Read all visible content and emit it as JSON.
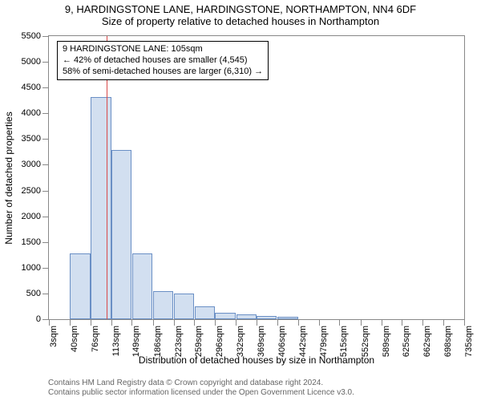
{
  "title": "9, HARDINGSTONE LANE, HARDINGSTONE, NORTHAMPTON, NN4 6DF",
  "subtitle": "Size of property relative to detached houses in Northampton",
  "y_axis_label": "Number of detached properties",
  "x_axis_label": "Distribution of detached houses by size in Northampton",
  "chart": {
    "type": "bar",
    "ylim": [
      0,
      5500
    ],
    "ytick_step": 500,
    "x_tick_labels": [
      "3sqm",
      "40sqm",
      "76sqm",
      "113sqm",
      "149sqm",
      "186sqm",
      "223sqm",
      "259sqm",
      "296sqm",
      "332sqm",
      "369sqm",
      "406sqm",
      "442sqm",
      "479sqm",
      "515sqm",
      "552sqm",
      "589sqm",
      "625sqm",
      "662sqm",
      "698sqm",
      "735sqm"
    ],
    "x_tick_values": [
      3,
      40,
      76,
      113,
      149,
      186,
      223,
      259,
      296,
      332,
      369,
      406,
      442,
      479,
      515,
      552,
      589,
      625,
      662,
      698,
      735
    ],
    "xlim": [
      3,
      735
    ],
    "bar_color": "#d2dff0",
    "bar_border_color": "#6a8fc5",
    "background_color": "#ffffff",
    "axis_color": "#888888",
    "bars": [
      {
        "x_center": 58,
        "width": 36,
        "value": 1280
      },
      {
        "x_center": 95,
        "width": 36,
        "value": 4320
      },
      {
        "x_center": 131,
        "width": 36,
        "value": 3280
      },
      {
        "x_center": 168,
        "width": 36,
        "value": 1280
      },
      {
        "x_center": 204,
        "width": 36,
        "value": 550
      },
      {
        "x_center": 241,
        "width": 36,
        "value": 500
      },
      {
        "x_center": 278,
        "width": 36,
        "value": 250
      },
      {
        "x_center": 314,
        "width": 36,
        "value": 120
      },
      {
        "x_center": 351,
        "width": 36,
        "value": 90
      },
      {
        "x_center": 387,
        "width": 36,
        "value": 60
      },
      {
        "x_center": 424,
        "width": 36,
        "value": 50
      }
    ],
    "marker": {
      "x_value": 105,
      "color": "#d94a4a"
    }
  },
  "annotation": {
    "line1": "9 HARDINGSTONE LANE: 105sqm",
    "line2": "← 42% of detached houses are smaller (4,545)",
    "line3": "58% of semi-detached houses are larger (6,310) →"
  },
  "footer": {
    "line1": "Contains HM Land Registry data © Crown copyright and database right 2024.",
    "line2": "Contains public sector information licensed under the Open Government Licence v3.0."
  }
}
